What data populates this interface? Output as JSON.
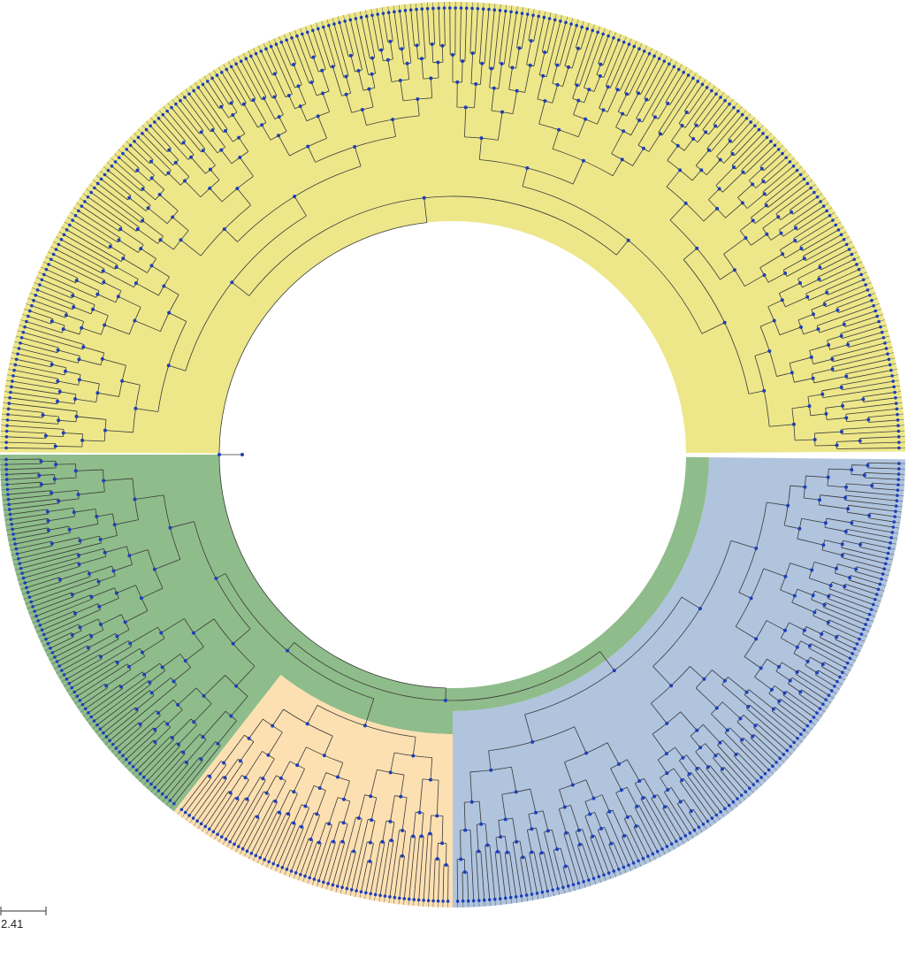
{
  "scale_bar": {
    "label": "2.41"
  }
}
